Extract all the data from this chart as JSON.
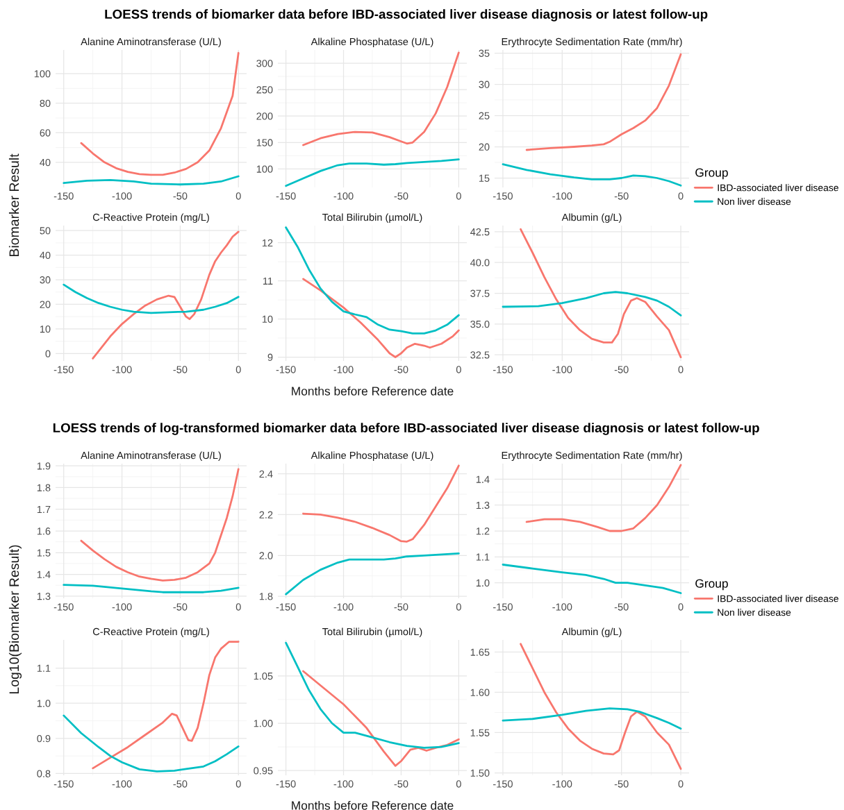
{
  "chart_data": [
    {
      "type": "line",
      "title": "Alanine Aminotransferase (U/L)",
      "annotations": [
        "LOESS trends of biomarker data before IBD-associated liver disease diagnosis or latest follow-up"
      ],
      "ylabel": "Biomarker Result",
      "xlim": [
        -157,
        7
      ],
      "xticks": [
        -150,
        -100,
        -50,
        0
      ],
      "ylim": [
        23,
        116
      ],
      "yticks": [
        40,
        60,
        80,
        100
      ],
      "grid": true,
      "series": [
        {
          "color": "#f8766d",
          "x": [
            -135,
            -125,
            -115,
            -105,
            -95,
            -85,
            -75,
            -65,
            -55,
            -45,
            -35,
            -25,
            -15,
            -5,
            0
          ],
          "values": [
            53,
            46,
            40,
            36,
            33.5,
            32,
            31.5,
            31.5,
            33,
            35.5,
            40,
            48,
            63,
            85,
            114
          ]
        },
        {
          "color": "#00bfc4",
          "x": [
            -150,
            -130,
            -110,
            -100,
            -90,
            -75,
            -50,
            -30,
            -15,
            0
          ],
          "values": [
            26,
            27.5,
            28,
            27.5,
            27,
            25.5,
            25,
            25.5,
            27,
            30.5
          ]
        }
      ]
    },
    {
      "type": "line",
      "title": "Alkaline Phosphatase (U/L)",
      "xlim": [
        -157,
        7
      ],
      "xticks": [
        -150,
        -100,
        -50,
        0
      ],
      "ylim": [
        65,
        325
      ],
      "yticks": [
        100,
        150,
        200,
        250,
        300
      ],
      "grid": true,
      "series": [
        {
          "color": "#f8766d",
          "x": [
            -135,
            -120,
            -105,
            -90,
            -75,
            -60,
            -50,
            -45,
            -40,
            -30,
            -20,
            -10,
            0
          ],
          "values": [
            145,
            158,
            166,
            170,
            169,
            160,
            152,
            148,
            150,
            170,
            205,
            255,
            320
          ]
        },
        {
          "color": "#00bfc4",
          "x": [
            -150,
            -135,
            -120,
            -105,
            -95,
            -80,
            -65,
            -55,
            -45,
            -30,
            -15,
            0
          ],
          "values": [
            68,
            82,
            96,
            107,
            110,
            110,
            108,
            109,
            111,
            113,
            115,
            118
          ]
        }
      ]
    },
    {
      "type": "line",
      "title": "Erythrocyte Sedimentation Rate (mm/hr)",
      "legend": "right",
      "legend_title": "Group",
      "xlim": [
        -157,
        7
      ],
      "xticks": [
        -150,
        -100,
        -50,
        0
      ],
      "ylim": [
        13.5,
        35.5
      ],
      "yticks": [
        15,
        20,
        25,
        30,
        35
      ],
      "grid": true,
      "series": [
        {
          "name": "IBD-associated liver disease",
          "color": "#f8766d",
          "x": [
            -130,
            -110,
            -90,
            -75,
            -65,
            -60,
            -50,
            -40,
            -30,
            -20,
            -10,
            0
          ],
          "values": [
            19.5,
            19.8,
            20,
            20.2,
            20.4,
            20.8,
            22,
            23,
            24.2,
            26.2,
            29.8,
            34.8
          ]
        },
        {
          "name": "Non liver disease",
          "color": "#00bfc4",
          "x": [
            -150,
            -130,
            -110,
            -90,
            -75,
            -60,
            -50,
            -40,
            -30,
            -20,
            -10,
            0
          ],
          "values": [
            17.2,
            16.3,
            15.6,
            15.1,
            14.8,
            14.8,
            15,
            15.4,
            15.3,
            15,
            14.5,
            13.8
          ]
        }
      ]
    },
    {
      "type": "line",
      "title": "C-Reactive Protein (mg/L)",
      "xlim": [
        -157,
        7
      ],
      "xticks": [
        -150,
        -100,
        -50,
        0
      ],
      "ylim": [
        -3,
        52
      ],
      "yticks": [
        0,
        10,
        20,
        30,
        40,
        50
      ],
      "grid": true,
      "series": [
        {
          "color": "#f8766d",
          "x": [
            -125,
            -120,
            -110,
            -100,
            -90,
            -80,
            -70,
            -60,
            -55,
            -50,
            -45,
            -42,
            -38,
            -32,
            -25,
            -20,
            -15,
            -10,
            -5,
            0
          ],
          "values": [
            -2,
            1,
            7,
            12,
            16,
            19.5,
            22,
            23.5,
            23,
            19,
            15,
            14,
            16,
            22,
            32,
            37.5,
            41,
            44,
            47.5,
            49.5
          ]
        },
        {
          "color": "#00bfc4",
          "x": [
            -150,
            -140,
            -130,
            -120,
            -110,
            -100,
            -90,
            -75,
            -60,
            -45,
            -30,
            -20,
            -10,
            0
          ],
          "values": [
            28,
            25,
            22.5,
            20.5,
            19,
            17.8,
            17,
            16.5,
            16.8,
            17,
            17.8,
            19,
            20.5,
            23
          ]
        }
      ]
    },
    {
      "type": "line",
      "title": "Total Bilirubin (µmol/L)",
      "xlabel": "Months before Reference date",
      "xlim": [
        -157,
        7
      ],
      "xticks": [
        -150,
        -100,
        -50,
        0
      ],
      "ylim": [
        8.9,
        12.45
      ],
      "yticks": [
        9,
        10,
        11,
        12
      ],
      "grid": true,
      "series": [
        {
          "color": "#f8766d",
          "x": [
            -135,
            -120,
            -100,
            -85,
            -70,
            -60,
            -55,
            -50,
            -45,
            -38,
            -30,
            -25,
            -15,
            -5,
            0
          ],
          "values": [
            11.05,
            10.75,
            10.3,
            9.9,
            9.45,
            9.1,
            9.0,
            9.1,
            9.25,
            9.35,
            9.3,
            9.25,
            9.35,
            9.55,
            9.7
          ]
        },
        {
          "color": "#00bfc4",
          "x": [
            -150,
            -140,
            -130,
            -120,
            -110,
            -100,
            -90,
            -80,
            -70,
            -60,
            -50,
            -40,
            -30,
            -20,
            -10,
            0
          ],
          "values": [
            12.4,
            11.9,
            11.3,
            10.8,
            10.45,
            10.2,
            10.12,
            10.05,
            9.85,
            9.72,
            9.68,
            9.62,
            9.62,
            9.7,
            9.85,
            10.1
          ]
        }
      ]
    },
    {
      "type": "line",
      "title": "Albumin (g/L)",
      "xlim": [
        -157,
        7
      ],
      "xticks": [
        -150,
        -100,
        -50,
        0
      ],
      "ylim": [
        32,
        43
      ],
      "yticks": [
        {
          "value": 32.5,
          "label": "32.5"
        },
        {
          "value": 35,
          "label": "35.0"
        },
        {
          "value": 37.5,
          "label": "37.5"
        },
        {
          "value": 40,
          "label": "40.0"
        },
        {
          "value": 42.5,
          "label": "42.5"
        }
      ],
      "grid": true,
      "series": [
        {
          "color": "#f8766d",
          "x": [
            -135,
            -125,
            -115,
            -105,
            -95,
            -85,
            -75,
            -65,
            -58,
            -53,
            -48,
            -42,
            -37,
            -30,
            -20,
            -10,
            0
          ],
          "values": [
            42.7,
            40.8,
            38.8,
            37,
            35.5,
            34.5,
            33.8,
            33.5,
            33.5,
            34.2,
            35.8,
            36.9,
            37.1,
            36.8,
            35.6,
            34.5,
            32.3
          ]
        },
        {
          "color": "#00bfc4",
          "x": [
            -150,
            -120,
            -100,
            -80,
            -65,
            -55,
            -45,
            -30,
            -20,
            -10,
            0
          ],
          "values": [
            36.4,
            36.45,
            36.7,
            37.1,
            37.5,
            37.6,
            37.5,
            37.2,
            36.9,
            36.4,
            35.7
          ]
        }
      ]
    },
    {
      "type": "line",
      "title": "Alanine Aminotransferase (U/L)",
      "annotations": [
        "LOESS trends of log-transformed biomarker data before IBD-associated liver disease diagnosis or latest follow-up"
      ],
      "ylabel": "Log10(Biomarker Result)",
      "xlim": [
        -157,
        7
      ],
      "xticks": [
        -150,
        -100,
        -50,
        0
      ],
      "ylim": [
        1.29,
        1.91
      ],
      "yticks": [
        1.3,
        1.4,
        1.5,
        1.6,
        1.7,
        1.8,
        1.9
      ],
      "grid": true,
      "series": [
        {
          "color": "#f8766d",
          "x": [
            -135,
            -125,
            -115,
            -105,
            -95,
            -85,
            -75,
            -65,
            -55,
            -45,
            -35,
            -25,
            -20,
            -15,
            -10,
            -5,
            0
          ],
          "values": [
            1.555,
            1.51,
            1.47,
            1.435,
            1.41,
            1.39,
            1.38,
            1.372,
            1.375,
            1.385,
            1.41,
            1.45,
            1.5,
            1.58,
            1.66,
            1.76,
            1.885
          ]
        },
        {
          "color": "#00bfc4",
          "x": [
            -150,
            -125,
            -100,
            -75,
            -65,
            -50,
            -30,
            -15,
            0
          ],
          "values": [
            1.352,
            1.348,
            1.335,
            1.322,
            1.318,
            1.318,
            1.318,
            1.325,
            1.338
          ]
        }
      ]
    },
    {
      "type": "line",
      "title": "Alkaline Phosphatase (U/L)",
      "xlim": [
        -157,
        7
      ],
      "xticks": [
        -150,
        -100,
        -50,
        0
      ],
      "ylim": [
        1.79,
        2.45
      ],
      "yticks": [
        {
          "value": 1.8,
          "label": "1.8"
        },
        {
          "value": 2.0,
          "label": "2.0"
        },
        {
          "value": 2.2,
          "label": "2.2"
        },
        {
          "value": 2.4,
          "label": "2.4"
        }
      ],
      "grid": true,
      "series": [
        {
          "color": "#f8766d",
          "x": [
            -135,
            -120,
            -105,
            -90,
            -75,
            -60,
            -50,
            -45,
            -40,
            -30,
            -20,
            -10,
            0
          ],
          "values": [
            2.205,
            2.2,
            2.185,
            2.165,
            2.135,
            2.1,
            2.07,
            2.068,
            2.08,
            2.15,
            2.24,
            2.33,
            2.44
          ]
        },
        {
          "color": "#00bfc4",
          "x": [
            -150,
            -135,
            -120,
            -105,
            -95,
            -80,
            -65,
            -55,
            -45,
            -30,
            -15,
            0
          ],
          "values": [
            1.81,
            1.88,
            1.93,
            1.965,
            1.98,
            1.98,
            1.98,
            1.985,
            1.995,
            2.0,
            2.005,
            2.01
          ]
        }
      ]
    },
    {
      "type": "line",
      "title": "Erythrocyte Sedimentation Rate (mm/hr)",
      "legend": "right",
      "legend_title": "Group",
      "xlim": [
        -157,
        7
      ],
      "xticks": [
        -150,
        -100,
        -50,
        0
      ],
      "ylim": [
        0.94,
        1.46
      ],
      "yticks": [
        {
          "value": 1.0,
          "label": "1.0"
        },
        1.1,
        1.2,
        1.3,
        1.4
      ],
      "grid": true,
      "series": [
        {
          "name": "IBD-associated liver disease",
          "color": "#f8766d",
          "x": [
            -130,
            -115,
            -100,
            -85,
            -70,
            -60,
            -50,
            -40,
            -30,
            -20,
            -10,
            0
          ],
          "values": [
            1.235,
            1.245,
            1.245,
            1.235,
            1.215,
            1.2,
            1.2,
            1.21,
            1.25,
            1.3,
            1.37,
            1.455
          ]
        },
        {
          "name": "Non liver disease",
          "color": "#00bfc4",
          "x": [
            -150,
            -125,
            -100,
            -80,
            -65,
            -55,
            -45,
            -30,
            -15,
            0
          ],
          "values": [
            1.07,
            1.055,
            1.04,
            1.03,
            1.015,
            1.0,
            1.0,
            0.99,
            0.98,
            0.96
          ]
        }
      ]
    },
    {
      "type": "line",
      "title": "C-Reactive Protein (mg/L)",
      "xlim": [
        -157,
        7
      ],
      "xticks": [
        -150,
        -100,
        -50,
        0
      ],
      "ylim": [
        0.795,
        1.18
      ],
      "yticks": [
        0.8,
        0.9,
        {
          "value": 1.0,
          "label": "1.0"
        },
        1.1
      ],
      "grid": true,
      "series": [
        {
          "color": "#f8766d",
          "x": [
            -125,
            -110,
            -95,
            -80,
            -65,
            -57,
            -53,
            -48,
            -43,
            -40,
            -35,
            -30,
            -25,
            -20,
            -15,
            -8,
            0
          ],
          "values": [
            0.815,
            0.845,
            0.875,
            0.91,
            0.945,
            0.97,
            0.965,
            0.93,
            0.895,
            0.893,
            0.93,
            1.0,
            1.08,
            1.13,
            1.155,
            1.175,
            1.175
          ]
        },
        {
          "color": "#00bfc4",
          "x": [
            -150,
            -135,
            -120,
            -110,
            -100,
            -85,
            -70,
            -55,
            -45,
            -30,
            -20,
            -10,
            0
          ],
          "values": [
            0.965,
            0.915,
            0.875,
            0.85,
            0.832,
            0.812,
            0.806,
            0.808,
            0.813,
            0.82,
            0.835,
            0.855,
            0.877
          ]
        }
      ]
    },
    {
      "type": "line",
      "title": "Total Bilirubin (µmol/L)",
      "xlabel": "Months before Reference date",
      "xlim": [
        -157,
        7
      ],
      "xticks": [
        -150,
        -100,
        -50,
        0
      ],
      "ylim": [
        0.945,
        1.088
      ],
      "yticks": [
        0.95,
        {
          "value": 1.0,
          "label": "1.00"
        },
        1.05
      ],
      "grid": true,
      "series": [
        {
          "color": "#f8766d",
          "x": [
            -135,
            -120,
            -100,
            -80,
            -65,
            -55,
            -50,
            -42,
            -35,
            -28,
            -20,
            -10,
            0
          ],
          "values": [
            1.055,
            1.04,
            1.02,
            0.995,
            0.97,
            0.955,
            0.96,
            0.972,
            0.974,
            0.971,
            0.974,
            0.977,
            0.983
          ]
        },
        {
          "color": "#00bfc4",
          "x": [
            -150,
            -140,
            -130,
            -120,
            -110,
            -100,
            -90,
            -75,
            -60,
            -45,
            -30,
            -15,
            0
          ],
          "values": [
            1.085,
            1.06,
            1.035,
            1.015,
            1.0,
            0.99,
            0.99,
            0.985,
            0.98,
            0.976,
            0.974,
            0.975,
            0.979
          ]
        }
      ]
    },
    {
      "type": "line",
      "title": "Albumin (g/L)",
      "xlim": [
        -157,
        7
      ],
      "xticks": [
        -150,
        -100,
        -50,
        0
      ],
      "ylim": [
        1.497,
        1.665
      ],
      "yticks": [
        {
          "value": 1.5,
          "label": "1.50"
        },
        1.55,
        {
          "value": 1.6,
          "label": "1.60"
        },
        1.65
      ],
      "grid": true,
      "series": [
        {
          "color": "#f8766d",
          "x": [
            -135,
            -125,
            -115,
            -105,
            -95,
            -85,
            -75,
            -65,
            -57,
            -52,
            -47,
            -42,
            -37,
            -30,
            -20,
            -10,
            0
          ],
          "values": [
            1.66,
            1.63,
            1.6,
            1.575,
            1.555,
            1.54,
            1.53,
            1.524,
            1.523,
            1.528,
            1.55,
            1.57,
            1.576,
            1.57,
            1.55,
            1.535,
            1.505
          ]
        },
        {
          "color": "#00bfc4",
          "x": [
            -150,
            -125,
            -100,
            -80,
            -60,
            -45,
            -35,
            -20,
            -10,
            0
          ],
          "values": [
            1.565,
            1.567,
            1.572,
            1.577,
            1.58,
            1.579,
            1.576,
            1.568,
            1.562,
            1.555
          ]
        }
      ]
    }
  ]
}
